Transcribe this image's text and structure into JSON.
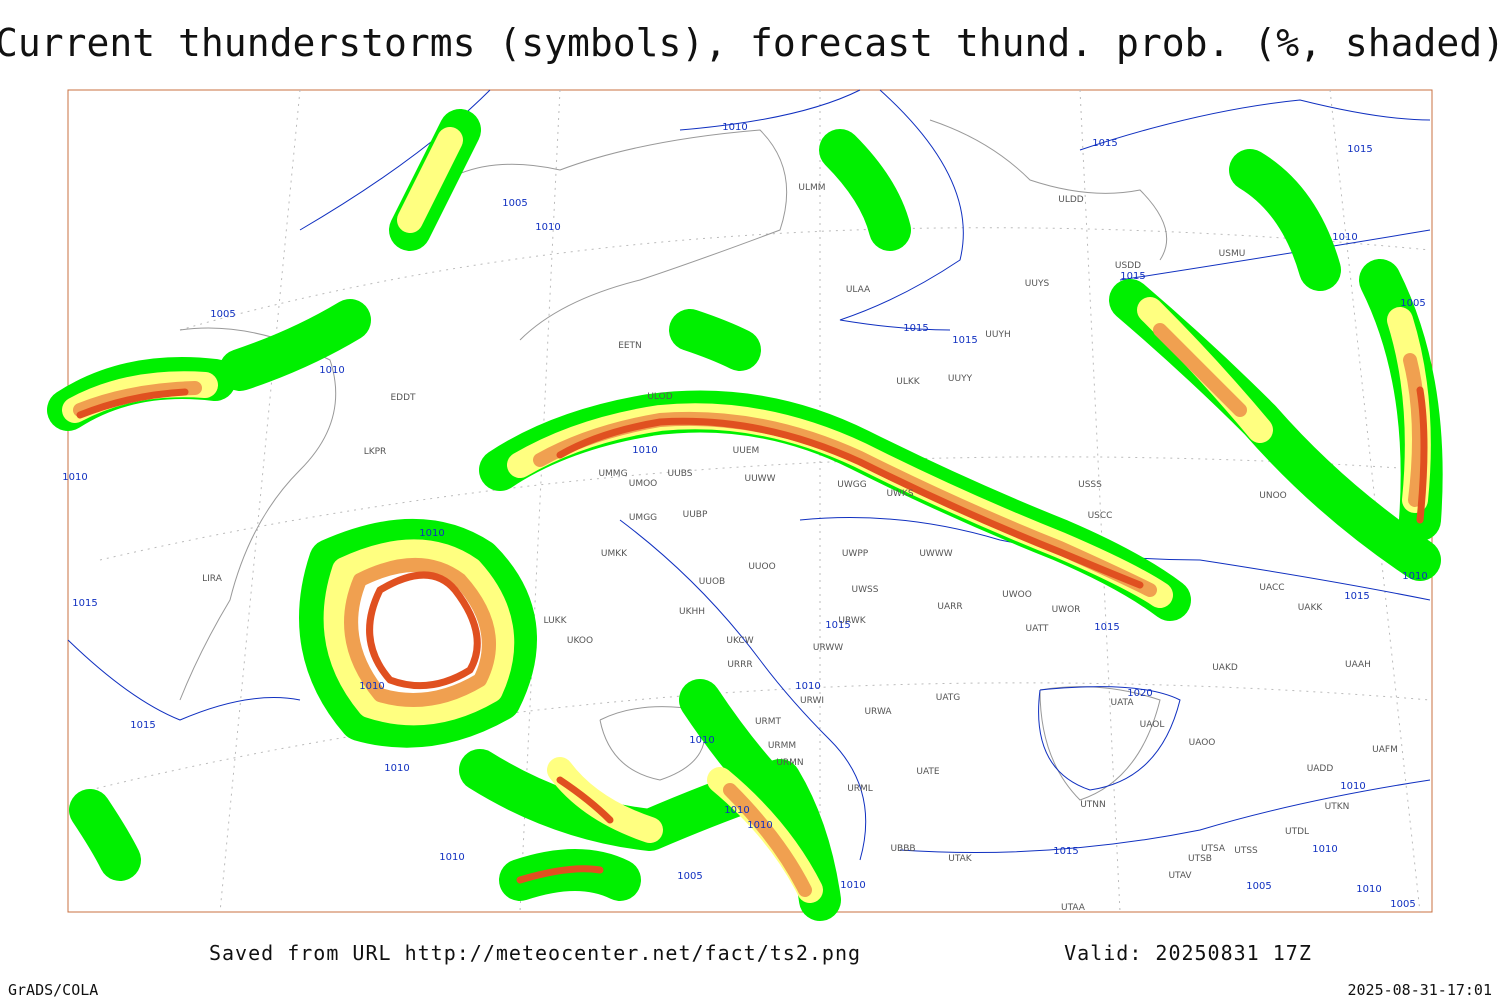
{
  "header": {
    "title": "Current thunderstorms (symbols), forecast thund. prob. (%, shaded)"
  },
  "map": {
    "isobar_labels": [
      1010,
      1005,
      1010,
      1005,
      1010,
      1010,
      1010,
      1015,
      1015,
      1010,
      1010,
      1010,
      1010,
      1015,
      1010,
      1010,
      1010,
      1005,
      1010,
      1015,
      1015,
      1015,
      1015,
      1015,
      1010,
      1005,
      1015,
      1015,
      1020,
      1015,
      1010,
      1010,
      1005,
      1010,
      1005,
      1010,
      1010
    ],
    "station_labels": [
      "ULMM",
      "ULDD",
      "USDD",
      "USMU",
      "ULAA",
      "UUYS",
      "UUYH",
      "ULKK",
      "UUYY",
      "EETN",
      "ULOD",
      "UMMG",
      "UMOO",
      "UUBS",
      "UUEM",
      "UUWW",
      "UWGG",
      "UWKS",
      "USSS",
      "USCC",
      "UNOO",
      "UMGG",
      "UUBP",
      "UWPP",
      "UWWW",
      "UUOO",
      "UUOB",
      "UWSS",
      "UARR",
      "UWOO",
      "UWOR",
      "UATT",
      "URWW",
      "URWK",
      "UKHH",
      "UKOO",
      "UKCW",
      "URRR",
      "UATG",
      "URWI",
      "URWA",
      "UATA",
      "UAOL",
      "UAOO",
      "UAKD",
      "UAKK",
      "UACC",
      "UATE",
      "URMT",
      "URMM",
      "URMN",
      "URML",
      "UTNN",
      "UBBB",
      "UTAK",
      "UTSA",
      "UTSS",
      "UTSB",
      "UTAV",
      "UTAA",
      "UAAH",
      "UAFM",
      "UADD",
      "UTKN",
      "UTDL",
      "LKPR",
      "EDDT",
      "LIRA",
      "LUKK",
      "UMKK"
    ]
  },
  "footer": {
    "source": "Saved from URL http://meteocenter.net/fact/ts2.png",
    "valid": "Valid: 20250831 17Z",
    "software": "GrADS/COLA",
    "timestamp": "2025-08-31-17:01"
  }
}
